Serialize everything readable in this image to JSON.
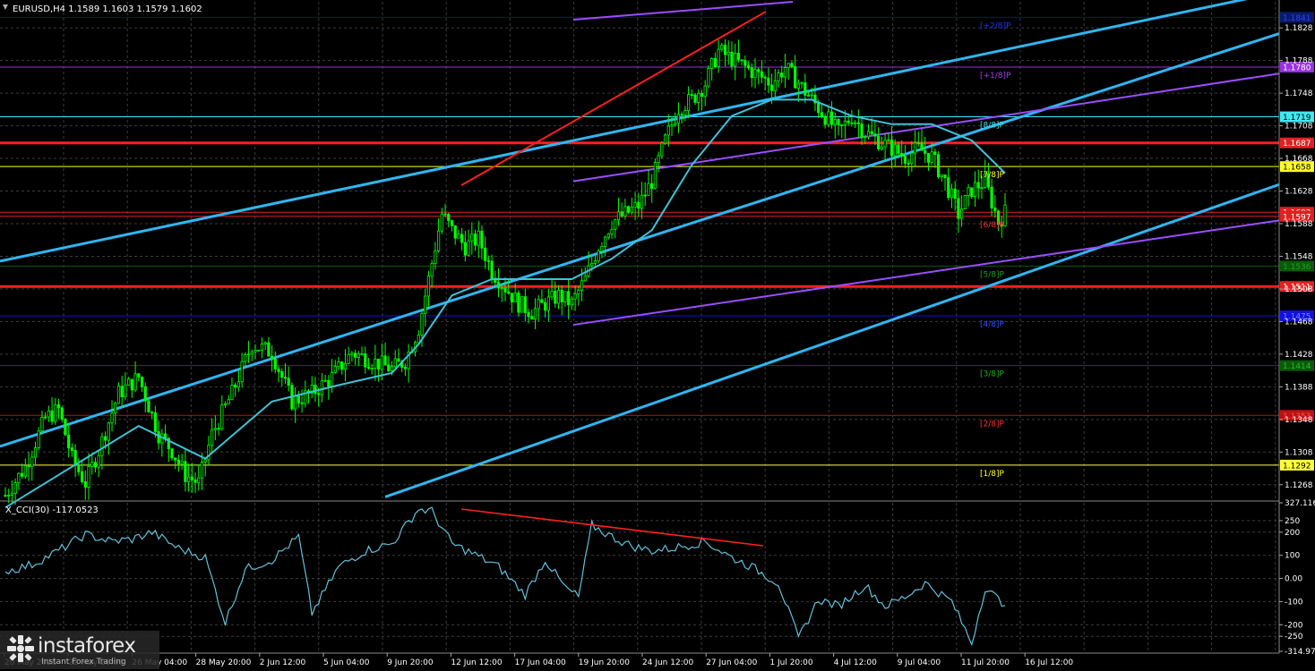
{
  "header": {
    "instrument": "EURUSD,H4",
    "quote": "1.1589 1.1603 1.1579 1.1602"
  },
  "colors": {
    "background": "#000000",
    "grid": "#3c3c3c",
    "candle_up": "#00ff00",
    "ma": "#3fc2d8",
    "channel": "#2fb6f2",
    "resistance": "#ff1e1e",
    "trend": "#9b4dff",
    "cci_line": "#62c0d8",
    "divergence": "#ff2020"
  },
  "price_axis": {
    "ticks": [
      "1.1828",
      "1.1788",
      "1.1748",
      "1.1708",
      "1.1668",
      "1.1628",
      "1.1588",
      "1.1548",
      "1.1508",
      "1.1468",
      "1.1428",
      "1.1388",
      "1.1348",
      "1.1308",
      "1.1268"
    ]
  },
  "cci": {
    "label": "X_CCI(30) -117.0523",
    "ticks": [
      "327.116",
      "250",
      "200",
      "100",
      "0.00",
      "-100",
      "-200",
      "-250",
      "-314.975"
    ]
  },
  "level_boxes": [
    {
      "text": "1.1841",
      "price": 1.1841,
      "fg": "#3040ff",
      "bg": "#0a1a6a"
    },
    {
      "text": "1.1780",
      "price": 1.178,
      "fg": "#ffffff",
      "bg": "#9a30e0"
    },
    {
      "text": "1.1719",
      "price": 1.1719,
      "fg": "#000000",
      "bg": "#40e8f0"
    },
    {
      "text": "1.1687",
      "price": 1.1687,
      "fg": "#ffffff",
      "bg": "#e02020"
    },
    {
      "text": "1.1658",
      "price": 1.1658,
      "fg": "#000000",
      "bg": "#ffff20"
    },
    {
      "text": "1.1602",
      "price": 1.1602,
      "fg": "#ffffff",
      "bg": "#e02020"
    },
    {
      "text": "1.1597",
      "price": 1.1597,
      "fg": "#ffffff",
      "bg": "#e02020"
    },
    {
      "text": "1.1536",
      "price": 1.1536,
      "fg": "#20a020",
      "bg": "#0a5a0a"
    },
    {
      "text": "1.1511",
      "price": 1.1511,
      "fg": "#ffffff",
      "bg": "#e02020"
    },
    {
      "text": "1.1475",
      "price": 1.1475,
      "fg": "#8080ff",
      "bg": "#1010e0"
    },
    {
      "text": "1.1414",
      "price": 1.1414,
      "fg": "#20c020",
      "bg": "#0a5a0a"
    },
    {
      "text": "1.1353",
      "price": 1.1353,
      "fg": "#ff5050",
      "bg": "#c01010"
    },
    {
      "text": "1.1292",
      "price": 1.1292,
      "fg": "#000000",
      "bg": "#ffff40"
    }
  ],
  "murrey": [
    {
      "text": "[+2/8]P",
      "price": 1.1841,
      "color": "#2030ff"
    },
    {
      "text": "[+1/8]P",
      "price": 1.178,
      "color": "#a040f0"
    },
    {
      "text": "[8/8]P",
      "price": 1.1719,
      "color": "#40e0e8"
    },
    {
      "text": "[7/8]P",
      "price": 1.1658,
      "color": "#ffff30"
    },
    {
      "text": "[6/8]P",
      "price": 1.1597,
      "color": "#ff3030"
    },
    {
      "text": "[5/8]P",
      "price": 1.1536,
      "color": "#20a020"
    },
    {
      "text": "[4/8]P",
      "price": 1.1475,
      "color": "#3050ff"
    },
    {
      "text": "[3/8]P",
      "price": 1.1414,
      "color": "#20b020"
    },
    {
      "text": "[2/8]P",
      "price": 1.1353,
      "color": "#ff3030"
    },
    {
      "text": "[1/8]P",
      "price": 1.1292,
      "color": "#ffff30"
    }
  ],
  "dates": [
    "20 May 2025",
    "22 May 20:00",
    "26 May 04:00",
    "28 May 20:00",
    "2 Jun 12:00",
    "5 Jun 04:00",
    "9 Jun 20:00",
    "12 Jun 12:00",
    "17 Jun 04:00",
    "19 Jun 20:00",
    "24 Jun 12:00",
    "27 Jun 04:00",
    "1 Jul 20:00",
    "4 Jul 12:00",
    "9 Jul 04:00",
    "11 Jul 20:00",
    "16 Jul 12:00"
  ],
  "brand": {
    "name": "instaforex",
    "tagline": "Instant Forex Trading"
  },
  "chart_data": {
    "type": "candlestick",
    "symbol": "EURUSD",
    "timeframe": "H4",
    "ylim": [
      1.1248,
      1.186
    ],
    "cci_ylim": [
      -314.975,
      327.116
    ],
    "price_path": [
      [
        0,
        1.1255
      ],
      [
        6,
        1.129
      ],
      [
        12,
        1.135
      ],
      [
        16,
        1.136
      ],
      [
        20,
        1.13
      ],
      [
        24,
        1.127
      ],
      [
        28,
        1.131
      ],
      [
        34,
        1.138
      ],
      [
        40,
        1.14
      ],
      [
        46,
        1.133
      ],
      [
        50,
        1.131
      ],
      [
        54,
        1.128
      ],
      [
        58,
        1.127
      ],
      [
        62,
        1.133
      ],
      [
        68,
        1.138
      ],
      [
        74,
        1.144
      ],
      [
        80,
        1.143
      ],
      [
        86,
        1.137
      ],
      [
        92,
        1.138
      ],
      [
        98,
        1.14
      ],
      [
        104,
        1.143
      ],
      [
        110,
        1.142
      ],
      [
        116,
        1.141
      ],
      [
        120,
        1.142
      ],
      [
        124,
        1.146
      ],
      [
        128,
        1.154
      ],
      [
        131,
        1.16
      ],
      [
        134,
        1.158
      ],
      [
        138,
        1.156
      ],
      [
        142,
        1.157
      ],
      [
        146,
        1.153
      ],
      [
        150,
        1.151
      ],
      [
        154,
        1.149
      ],
      [
        158,
        1.148
      ],
      [
        162,
        1.149
      ],
      [
        166,
        1.15
      ],
      [
        170,
        1.149
      ],
      [
        174,
        1.152
      ],
      [
        178,
        1.156
      ],
      [
        182,
        1.159
      ],
      [
        186,
        1.16
      ],
      [
        190,
        1.161
      ],
      [
        194,
        1.164
      ],
      [
        198,
        1.169
      ],
      [
        202,
        1.173
      ],
      [
        206,
        1.174
      ],
      [
        210,
        1.176
      ],
      [
        214,
        1.18
      ],
      [
        218,
        1.179
      ],
      [
        222,
        1.178
      ],
      [
        226,
        1.177
      ],
      [
        230,
        1.176
      ],
      [
        234,
        1.178
      ],
      [
        238,
        1.176
      ],
      [
        242,
        1.174
      ],
      [
        246,
        1.172
      ],
      [
        250,
        1.17
      ],
      [
        254,
        1.172
      ],
      [
        258,
        1.17
      ],
      [
        262,
        1.169
      ],
      [
        266,
        1.168
      ],
      [
        270,
        1.167
      ],
      [
        274,
        1.168
      ],
      [
        278,
        1.167
      ],
      [
        282,
        1.164
      ],
      [
        286,
        1.16
      ],
      [
        290,
        1.163
      ],
      [
        294,
        1.164
      ],
      [
        298,
        1.159
      ],
      [
        300,
        1.1602
      ]
    ],
    "ma_path": [
      [
        0,
        1.124
      ],
      [
        20,
        1.129
      ],
      [
        40,
        1.134
      ],
      [
        60,
        1.13
      ],
      [
        80,
        1.137
      ],
      [
        100,
        1.139
      ],
      [
        116,
        1.1405
      ],
      [
        124,
        1.144
      ],
      [
        134,
        1.15
      ],
      [
        146,
        1.152
      ],
      [
        158,
        1.152
      ],
      [
        170,
        1.152
      ],
      [
        182,
        1.1545
      ],
      [
        194,
        1.158
      ],
      [
        206,
        1.166
      ],
      [
        218,
        1.172
      ],
      [
        230,
        1.174
      ],
      [
        242,
        1.174
      ],
      [
        254,
        1.172
      ],
      [
        266,
        1.171
      ],
      [
        278,
        1.171
      ],
      [
        290,
        1.169
      ],
      [
        300,
        1.165
      ]
    ],
    "cci_path": [
      [
        0,
        30
      ],
      [
        8,
        60
      ],
      [
        16,
        120
      ],
      [
        24,
        190
      ],
      [
        32,
        160
      ],
      [
        38,
        170
      ],
      [
        44,
        200
      ],
      [
        52,
        130
      ],
      [
        60,
        90
      ],
      [
        66,
        -190
      ],
      [
        72,
        40
      ],
      [
        80,
        80
      ],
      [
        88,
        180
      ],
      [
        92,
        -150
      ],
      [
        100,
        50
      ],
      [
        108,
        120
      ],
      [
        116,
        150
      ],
      [
        124,
        300
      ],
      [
        128,
        290
      ],
      [
        134,
        150
      ],
      [
        140,
        110
      ],
      [
        148,
        50
      ],
      [
        156,
        -70
      ],
      [
        162,
        80
      ],
      [
        168,
        -40
      ],
      [
        172,
        -80
      ],
      [
        176,
        230
      ],
      [
        182,
        180
      ],
      [
        188,
        140
      ],
      [
        194,
        120
      ],
      [
        200,
        130
      ],
      [
        210,
        160
      ],
      [
        218,
        90
      ],
      [
        224,
        50
      ],
      [
        232,
        -20
      ],
      [
        238,
        -260
      ],
      [
        244,
        -90
      ],
      [
        250,
        -120
      ],
      [
        258,
        -30
      ],
      [
        264,
        -120
      ],
      [
        270,
        -80
      ],
      [
        276,
        -20
      ],
      [
        284,
        -100
      ],
      [
        290,
        -280
      ],
      [
        294,
        -40
      ],
      [
        300,
        -117
      ]
    ]
  }
}
